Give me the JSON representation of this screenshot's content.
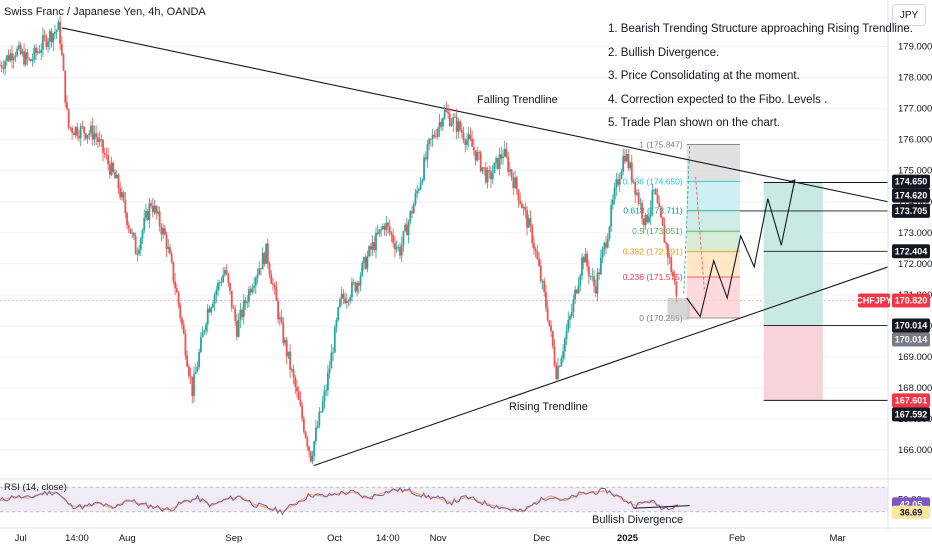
{
  "header": {
    "title": "Swiss Franc / Japanese Yen, 4h, OANDA",
    "currency": "JPY"
  },
  "notes": [
    "1. Bearish Trending Structure approaching Rising Trendline.",
    "2. Bullish Divergence.",
    "3. Price Consolidating at the moment.",
    "4. Correction expected to the Fibo. Levels .",
    "5. Trade Plan shown on the chart."
  ],
  "annotations": {
    "falling": "Falling Trendline",
    "rising": "Rising Trendline",
    "divergence": "Bullish Divergence"
  },
  "colors": {
    "up": "#26a69a",
    "down": "#ef5350",
    "rsi_line": "#7e57c2",
    "rsi_ma": "#f9a825",
    "profit_zone": "#bfe6dd",
    "loss_zone": "#f7cdd3"
  },
  "chart_data": {
    "type": "candlestick",
    "symbol": "CHFJPY",
    "ylim": [
      165.1,
      180.5
    ],
    "y_ticks": [
      166.0,
      167.0,
      168.0,
      169.0,
      170.0,
      171.0,
      172.0,
      173.0,
      174.0,
      175.0,
      176.0,
      177.0,
      178.0,
      179.0
    ],
    "x_ticks": [
      "Jul",
      "14:00",
      "Aug",
      "Sep",
      "Oct",
      "14:00",
      "Nov",
      "Dec",
      "2025",
      "Feb",
      "Mar"
    ],
    "price_path": [
      {
        "t": 0.0,
        "p": 178.4
      },
      {
        "t": 0.5,
        "p": 178.9
      },
      {
        "t": 1.0,
        "p": 178.5
      },
      {
        "t": 1.6,
        "p": 179.3
      },
      {
        "t": 2.0,
        "p": 179.6
      },
      {
        "t": 2.3,
        "p": 176.4
      },
      {
        "t": 3.2,
        "p": 176.2
      },
      {
        "t": 4.0,
        "p": 174.5
      },
      {
        "t": 4.6,
        "p": 172.4
      },
      {
        "t": 5.1,
        "p": 174.0
      },
      {
        "t": 5.6,
        "p": 172.8
      },
      {
        "t": 6.0,
        "p": 170.9
      },
      {
        "t": 6.5,
        "p": 167.9
      },
      {
        "t": 7.0,
        "p": 170.5
      },
      {
        "t": 7.6,
        "p": 171.8
      },
      {
        "t": 8.0,
        "p": 169.9
      },
      {
        "t": 8.5,
        "p": 171.4
      },
      {
        "t": 9.0,
        "p": 172.4
      },
      {
        "t": 9.5,
        "p": 169.9
      },
      {
        "t": 10.0,
        "p": 167.9
      },
      {
        "t": 10.5,
        "p": 165.8
      },
      {
        "t": 11.0,
        "p": 167.9
      },
      {
        "t": 11.5,
        "p": 170.8
      },
      {
        "t": 12.0,
        "p": 171.3
      },
      {
        "t": 12.5,
        "p": 172.4
      },
      {
        "t": 13.0,
        "p": 173.3
      },
      {
        "t": 13.5,
        "p": 172.4
      },
      {
        "t": 14.0,
        "p": 174.0
      },
      {
        "t": 14.5,
        "p": 175.8
      },
      {
        "t": 15.0,
        "p": 176.9
      },
      {
        "t": 15.5,
        "p": 176.4
      },
      {
        "t": 16.0,
        "p": 175.7
      },
      {
        "t": 16.5,
        "p": 174.7
      },
      {
        "t": 17.0,
        "p": 175.6
      },
      {
        "t": 17.5,
        "p": 174.3
      },
      {
        "t": 18.0,
        "p": 172.8
      },
      {
        "t": 18.5,
        "p": 170.4
      },
      {
        "t": 18.8,
        "p": 168.5
      },
      {
        "t": 19.3,
        "p": 170.4
      },
      {
        "t": 19.7,
        "p": 172.3
      },
      {
        "t": 20.1,
        "p": 171.2
      },
      {
        "t": 20.5,
        "p": 172.9
      },
      {
        "t": 20.8,
        "p": 174.4
      },
      {
        "t": 21.1,
        "p": 175.6
      },
      {
        "t": 21.4,
        "p": 174.7
      },
      {
        "t": 21.8,
        "p": 173.3
      },
      {
        "t": 22.1,
        "p": 174.3
      },
      {
        "t": 22.5,
        "p": 172.6
      },
      {
        "t": 22.9,
        "p": 170.9
      }
    ],
    "rsi": {
      "label": "RSI (14, close)",
      "value": "42.05",
      "ma_value": "36.69",
      "ylim": [
        20,
        80
      ],
      "values": [
        48,
        55,
        52,
        60,
        62,
        40,
        38,
        44,
        35,
        50,
        42,
        38,
        33,
        46,
        52,
        40,
        50,
        55,
        42,
        36,
        30,
        45,
        58,
        55,
        60,
        62,
        52,
        60,
        66,
        64,
        56,
        52,
        45,
        54,
        46,
        40,
        35,
        30,
        46,
        56,
        48,
        58,
        62,
        64,
        52,
        40,
        48,
        36,
        42
      ]
    },
    "fibonacci": [
      {
        "label": "1 (175.847)",
        "ratio": "1",
        "price": 175.847
      },
      {
        "label": "0.786 (174.650)",
        "ratio": "0.786",
        "price": 174.65
      },
      {
        "label": "0.618 (173.711)",
        "ratio": "0.618",
        "price": 173.711
      },
      {
        "label": "0.5 (173.051)",
        "ratio": "0.5",
        "price": 173.051
      },
      {
        "label": "0.382 (172.391)",
        "ratio": "0.382",
        "price": 172.391
      },
      {
        "label": "0.236 (171.575)",
        "ratio": "0.236",
        "price": 171.575
      },
      {
        "label": "0 (170.255)",
        "ratio": "0",
        "price": 170.255
      }
    ],
    "trade_plan": {
      "target": 174.62,
      "entry": 170.014,
      "stop": 167.601,
      "projected_path": [
        170.9,
        170.3,
        172.1,
        170.9,
        172.9,
        171.9,
        174.1,
        172.6,
        174.7
      ]
    },
    "trendlines": [
      {
        "name": "Falling Trendline",
        "from": {
          "t": 2.1,
          "p": 179.6
        },
        "to": {
          "t": 30.0,
          "p": 174.0
        }
      },
      {
        "name": "Rising Trendline",
        "from": {
          "t": 10.6,
          "p": 165.5
        },
        "to": {
          "t": 30.0,
          "p": 171.9
        }
      }
    ],
    "price_labels": [
      {
        "text": "174.650",
        "price": 174.65,
        "style": "dark"
      },
      {
        "text": "174.620",
        "price": 174.62,
        "style": "dark"
      },
      {
        "text": "173.705",
        "price": 173.705,
        "style": "dark"
      },
      {
        "text": "172.404",
        "price": 172.404,
        "style": "dark"
      },
      {
        "text": "CHFJPY",
        "price": 170.82,
        "style": "red"
      },
      {
        "text": "170.820",
        "price": 170.82,
        "style": "red"
      },
      {
        "text": "170.014",
        "price": 170.014,
        "style": "dark"
      },
      {
        "text": "170.014",
        "price": 170.014,
        "style": "grey"
      },
      {
        "text": "167.601",
        "price": 167.601,
        "style": "red"
      },
      {
        "text": "167.592",
        "price": 167.592,
        "style": "dark"
      }
    ],
    "rsi_axis_label": "50.00"
  }
}
